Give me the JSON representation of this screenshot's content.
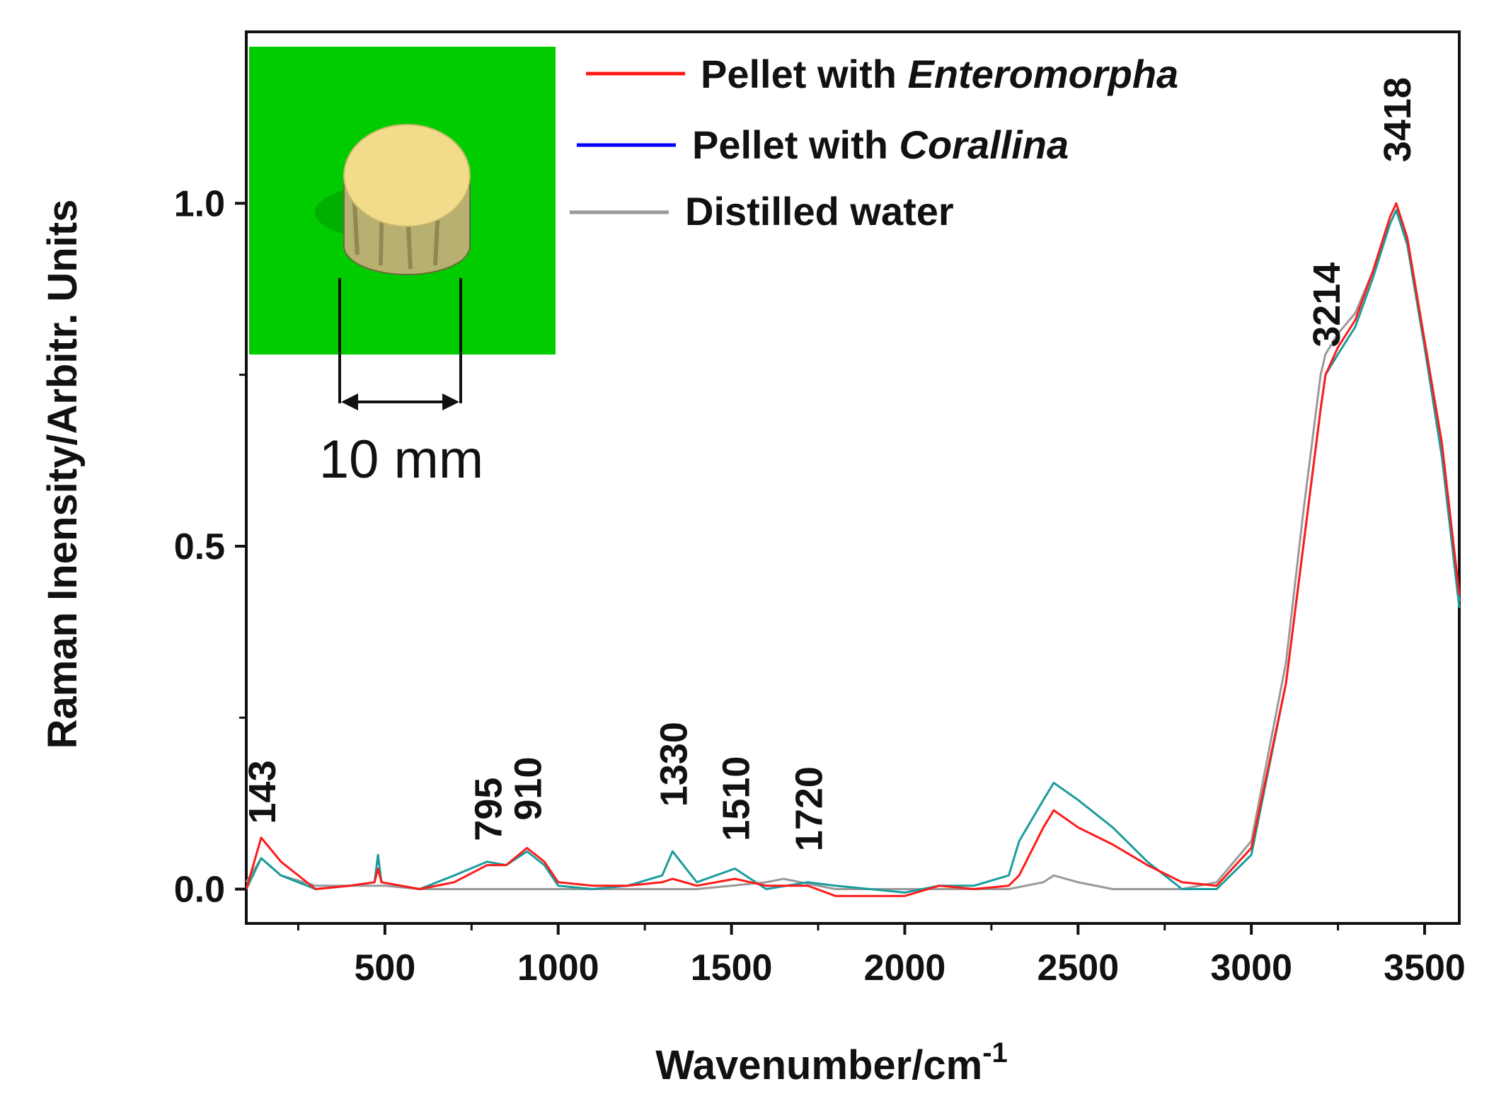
{
  "chart_data": {
    "type": "line",
    "xlabel": "Wavenumber/cm",
    "xlabel_superscript": "-1",
    "ylabel": "Raman Inensity/Arbitr. Units",
    "xlim": [
      100,
      3600
    ],
    "ylim": [
      -0.05,
      1.25
    ],
    "x_ticks": [
      500,
      1000,
      1500,
      2000,
      2500,
      3000,
      3500
    ],
    "x_tick_labels": [
      "500",
      "1000",
      "1500",
      "2000",
      "2500",
      "3000",
      "3500"
    ],
    "y_ticks": [
      0.0,
      0.5,
      1.0
    ],
    "y_tick_labels": [
      "0.0",
      "0.5",
      "1.0"
    ],
    "grid": false,
    "legend_position": "top-right",
    "series": [
      {
        "name": "Pellet with Enteromorpha",
        "legend_prefix": "Pellet with ",
        "legend_italic": "Enteromorpha",
        "color": "#ff1a1a",
        "x": [
          100,
          143,
          200,
          300,
          400,
          470,
          480,
          490,
          600,
          700,
          795,
          850,
          910,
          960,
          1000,
          1100,
          1200,
          1300,
          1330,
          1400,
          1510,
          1600,
          1720,
          1800,
          1900,
          2000,
          2100,
          2200,
          2300,
          2330,
          2400,
          2430,
          2500,
          2600,
          2700,
          2800,
          2900,
          3000,
          3100,
          3150,
          3200,
          3214,
          3250,
          3300,
          3350,
          3400,
          3418,
          3450,
          3500,
          3550,
          3600
        ],
        "y": [
          0.0,
          0.075,
          0.04,
          0.0,
          0.005,
          0.01,
          0.03,
          0.01,
          0.0,
          0.01,
          0.035,
          0.035,
          0.06,
          0.04,
          0.01,
          0.005,
          0.005,
          0.01,
          0.015,
          0.005,
          0.015,
          0.005,
          0.005,
          -0.01,
          -0.01,
          -0.01,
          0.005,
          0.0,
          0.005,
          0.02,
          0.09,
          0.115,
          0.09,
          0.065,
          0.035,
          0.01,
          0.005,
          0.06,
          0.3,
          0.5,
          0.7,
          0.75,
          0.79,
          0.83,
          0.9,
          0.98,
          1.0,
          0.95,
          0.8,
          0.65,
          0.43
        ]
      },
      {
        "name": "Pellet with Corallina",
        "legend_prefix": "Pellet with ",
        "legend_italic": "Corallina",
        "color": "#1a9c9c",
        "legend_color": "#0000ff",
        "x": [
          100,
          143,
          200,
          300,
          400,
          470,
          480,
          490,
          600,
          700,
          795,
          850,
          910,
          960,
          1000,
          1100,
          1200,
          1300,
          1330,
          1400,
          1510,
          1600,
          1720,
          1800,
          1900,
          2000,
          2100,
          2200,
          2300,
          2330,
          2400,
          2430,
          2500,
          2600,
          2700,
          2800,
          2900,
          3000,
          3100,
          3150,
          3200,
          3214,
          3250,
          3300,
          3350,
          3400,
          3418,
          3450,
          3500,
          3550,
          3600
        ],
        "y": [
          0.0,
          0.045,
          0.02,
          0.0,
          0.005,
          0.01,
          0.05,
          0.01,
          0.0,
          0.02,
          0.04,
          0.035,
          0.055,
          0.035,
          0.005,
          0.0,
          0.005,
          0.02,
          0.055,
          0.01,
          0.03,
          0.0,
          0.01,
          0.005,
          0.0,
          -0.005,
          0.005,
          0.005,
          0.02,
          0.07,
          0.13,
          0.155,
          0.13,
          0.09,
          0.04,
          0.0,
          0.0,
          0.05,
          0.3,
          0.5,
          0.7,
          0.75,
          0.78,
          0.82,
          0.89,
          0.97,
          0.99,
          0.94,
          0.79,
          0.63,
          0.41
        ]
      },
      {
        "name": "Distilled water",
        "legend_prefix": "Distilled water",
        "legend_italic": "",
        "color": "#999999",
        "x": [
          100,
          143,
          200,
          300,
          400,
          500,
          600,
          700,
          800,
          900,
          1000,
          1100,
          1200,
          1300,
          1400,
          1500,
          1600,
          1650,
          1700,
          1800,
          1900,
          2000,
          2100,
          2200,
          2300,
          2400,
          2430,
          2500,
          2600,
          2700,
          2800,
          2900,
          3000,
          3100,
          3150,
          3200,
          3214,
          3250,
          3300,
          3350,
          3400,
          3418,
          3450,
          3500,
          3550,
          3600
        ],
        "y": [
          0.01,
          0.045,
          0.02,
          0.005,
          0.005,
          0.005,
          0.0,
          0.0,
          0.0,
          0.0,
          0.0,
          0.0,
          0.0,
          0.0,
          0.0,
          0.005,
          0.01,
          0.015,
          0.01,
          0.0,
          0.0,
          0.0,
          0.0,
          0.0,
          0.0,
          0.01,
          0.02,
          0.01,
          0.0,
          0.0,
          0.0,
          0.01,
          0.07,
          0.33,
          0.55,
          0.75,
          0.78,
          0.81,
          0.84,
          0.9,
          0.97,
          0.99,
          0.94,
          0.79,
          0.63,
          0.42
        ]
      }
    ],
    "peak_annotations": [
      {
        "label": "143",
        "x": 143,
        "y": 0.095
      },
      {
        "label": "795",
        "x": 795,
        "y": 0.07
      },
      {
        "label": "910",
        "x": 910,
        "y": 0.1
      },
      {
        "label": "1330",
        "x": 1330,
        "y": 0.12
      },
      {
        "label": "1510",
        "x": 1510,
        "y": 0.07
      },
      {
        "label": "1720",
        "x": 1720,
        "y": 0.055
      },
      {
        "label": "3214",
        "x": 3214,
        "y": 0.79
      },
      {
        "label": "3418",
        "x": 3418,
        "y": 1.06
      }
    ]
  },
  "inset": {
    "scale_label": "10 mm",
    "background_color": "#00cc00",
    "pellet_top_color": "#f2dc8c",
    "pellet_side_color": "#b8b070"
  }
}
